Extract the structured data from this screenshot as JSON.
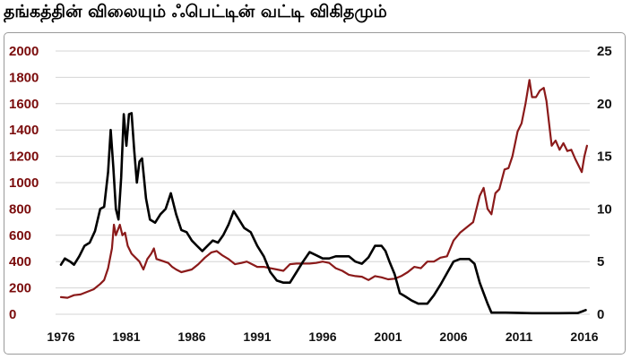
{
  "title": "தங்கத்தின் விலையும் ஃபெட்டின்  வட்டி விகிதமும்",
  "chart_data": {
    "type": "line",
    "title": "தங்கத்தின் விலையும் ஃபெட்டின்  வட்டி விகிதமும்",
    "xlim": [
      1976,
      2016
    ],
    "x_ticks": [
      "1976",
      "1981",
      "1986",
      "1991",
      "1996",
      "2001",
      "2006",
      "2011",
      "2016"
    ],
    "y_left": {
      "ylim": [
        0,
        2000
      ],
      "ticks": [
        "0",
        "200",
        "400",
        "600",
        "800",
        "1000",
        "1200",
        "1400",
        "1600",
        "1800",
        "2000"
      ]
    },
    "y_right": {
      "ylim": [
        0,
        25
      ],
      "ticks": [
        "0",
        "5",
        "10",
        "15",
        "20",
        "25"
      ]
    },
    "grid": true,
    "legend": "none",
    "colors": {
      "gold": "#8b1a1a",
      "rate": "#000000",
      "left_axis": "#7a0b0b",
      "right_axis": "#111111",
      "grid": "#d4d4d4"
    },
    "series": [
      {
        "axis": "left",
        "color": "#8b1a1a",
        "points": [
          [
            1976.0,
            130
          ],
          [
            1976.5,
            125
          ],
          [
            1977.0,
            145
          ],
          [
            1977.5,
            150
          ],
          [
            1978.0,
            170
          ],
          [
            1978.5,
            190
          ],
          [
            1979.0,
            230
          ],
          [
            1979.3,
            260
          ],
          [
            1979.6,
            350
          ],
          [
            1979.9,
            500
          ],
          [
            1980.05,
            680
          ],
          [
            1980.2,
            600
          ],
          [
            1980.35,
            640
          ],
          [
            1980.5,
            680
          ],
          [
            1980.7,
            600
          ],
          [
            1980.9,
            620
          ],
          [
            1981.1,
            520
          ],
          [
            1981.4,
            460
          ],
          [
            1981.7,
            430
          ],
          [
            1982.0,
            400
          ],
          [
            1982.3,
            340
          ],
          [
            1982.6,
            420
          ],
          [
            1982.9,
            460
          ],
          [
            1983.1,
            500
          ],
          [
            1983.3,
            420
          ],
          [
            1983.6,
            410
          ],
          [
            1983.9,
            400
          ],
          [
            1984.2,
            390
          ],
          [
            1984.5,
            360
          ],
          [
            1984.8,
            340
          ],
          [
            1985.2,
            320
          ],
          [
            1985.6,
            330
          ],
          [
            1986.0,
            340
          ],
          [
            1986.5,
            380
          ],
          [
            1987.0,
            430
          ],
          [
            1987.5,
            470
          ],
          [
            1987.9,
            480
          ],
          [
            1988.3,
            450
          ],
          [
            1988.8,
            420
          ],
          [
            1989.3,
            380
          ],
          [
            1989.8,
            390
          ],
          [
            1990.2,
            400
          ],
          [
            1990.6,
            380
          ],
          [
            1991.0,
            360
          ],
          [
            1991.5,
            360
          ],
          [
            1992.0,
            350
          ],
          [
            1992.5,
            340
          ],
          [
            1993.0,
            330
          ],
          [
            1993.5,
            380
          ],
          [
            1994.0,
            385
          ],
          [
            1994.5,
            385
          ],
          [
            1995.0,
            385
          ],
          [
            1995.5,
            390
          ],
          [
            1996.0,
            400
          ],
          [
            1996.5,
            390
          ],
          [
            1997.0,
            350
          ],
          [
            1997.5,
            330
          ],
          [
            1998.0,
            300
          ],
          [
            1998.5,
            290
          ],
          [
            1999.0,
            285
          ],
          [
            1999.5,
            260
          ],
          [
            2000.0,
            290
          ],
          [
            2000.5,
            280
          ],
          [
            2001.0,
            265
          ],
          [
            2001.5,
            270
          ],
          [
            2002.0,
            290
          ],
          [
            2002.5,
            320
          ],
          [
            2003.0,
            360
          ],
          [
            2003.5,
            350
          ],
          [
            2004.0,
            400
          ],
          [
            2004.5,
            400
          ],
          [
            2005.0,
            430
          ],
          [
            2005.5,
            440
          ],
          [
            2006.0,
            560
          ],
          [
            2006.5,
            620
          ],
          [
            2007.0,
            660
          ],
          [
            2007.5,
            700
          ],
          [
            2008.0,
            900
          ],
          [
            2008.3,
            960
          ],
          [
            2008.6,
            800
          ],
          [
            2008.9,
            760
          ],
          [
            2009.2,
            920
          ],
          [
            2009.5,
            950
          ],
          [
            2009.9,
            1100
          ],
          [
            2010.2,
            1110
          ],
          [
            2010.5,
            1200
          ],
          [
            2010.9,
            1390
          ],
          [
            2011.2,
            1450
          ],
          [
            2011.5,
            1600
          ],
          [
            2011.8,
            1780
          ],
          [
            2012.0,
            1650
          ],
          [
            2012.3,
            1650
          ],
          [
            2012.6,
            1700
          ],
          [
            2012.9,
            1720
          ],
          [
            2013.1,
            1620
          ],
          [
            2013.3,
            1450
          ],
          [
            2013.5,
            1280
          ],
          [
            2013.8,
            1320
          ],
          [
            2014.1,
            1250
          ],
          [
            2014.4,
            1300
          ],
          [
            2014.7,
            1240
          ],
          [
            2015.0,
            1250
          ],
          [
            2015.3,
            1180
          ],
          [
            2015.6,
            1120
          ],
          [
            2015.8,
            1080
          ],
          [
            2016.0,
            1200
          ],
          [
            2016.2,
            1280
          ]
        ]
      },
      {
        "axis": "right",
        "color": "#000000",
        "points": [
          [
            1976.0,
            4.7
          ],
          [
            1976.3,
            5.3
          ],
          [
            1976.7,
            5.0
          ],
          [
            1977.0,
            4.7
          ],
          [
            1977.4,
            5.5
          ],
          [
            1977.8,
            6.5
          ],
          [
            1978.2,
            6.8
          ],
          [
            1978.6,
            7.9
          ],
          [
            1979.0,
            10.0
          ],
          [
            1979.3,
            10.2
          ],
          [
            1979.6,
            13.5
          ],
          [
            1979.8,
            17.5
          ],
          [
            1980.0,
            14.0
          ],
          [
            1980.2,
            10.0
          ],
          [
            1980.4,
            9.0
          ],
          [
            1980.6,
            13.0
          ],
          [
            1980.8,
            19.0
          ],
          [
            1981.0,
            16.0
          ],
          [
            1981.2,
            19.0
          ],
          [
            1981.4,
            19.1
          ],
          [
            1981.6,
            15.5
          ],
          [
            1981.8,
            12.5
          ],
          [
            1982.0,
            14.5
          ],
          [
            1982.2,
            14.8
          ],
          [
            1982.5,
            11.0
          ],
          [
            1982.8,
            9.0
          ],
          [
            1983.2,
            8.7
          ],
          [
            1983.6,
            9.5
          ],
          [
            1984.0,
            10.0
          ],
          [
            1984.4,
            11.5
          ],
          [
            1984.8,
            9.5
          ],
          [
            1985.2,
            8.0
          ],
          [
            1985.6,
            7.8
          ],
          [
            1986.0,
            7.0
          ],
          [
            1986.4,
            6.5
          ],
          [
            1986.8,
            6.0
          ],
          [
            1987.2,
            6.5
          ],
          [
            1987.6,
            7.0
          ],
          [
            1988.0,
            6.8
          ],
          [
            1988.4,
            7.5
          ],
          [
            1988.8,
            8.5
          ],
          [
            1989.2,
            9.8
          ],
          [
            1989.6,
            9.0
          ],
          [
            1990.0,
            8.2
          ],
          [
            1990.5,
            7.8
          ],
          [
            1991.0,
            6.5
          ],
          [
            1991.5,
            5.5
          ],
          [
            1992.0,
            4.0
          ],
          [
            1992.5,
            3.2
          ],
          [
            1993.0,
            3.0
          ],
          [
            1993.5,
            3.0
          ],
          [
            1994.0,
            4.0
          ],
          [
            1994.5,
            5.0
          ],
          [
            1995.0,
            5.9
          ],
          [
            1995.5,
            5.6
          ],
          [
            1996.0,
            5.3
          ],
          [
            1996.5,
            5.3
          ],
          [
            1997.0,
            5.5
          ],
          [
            1997.5,
            5.5
          ],
          [
            1998.0,
            5.5
          ],
          [
            1998.5,
            5.0
          ],
          [
            1999.0,
            4.8
          ],
          [
            1999.5,
            5.4
          ],
          [
            2000.0,
            6.5
          ],
          [
            2000.5,
            6.5
          ],
          [
            2000.8,
            6.0
          ],
          [
            2001.1,
            5.0
          ],
          [
            2001.5,
            3.8
          ],
          [
            2001.9,
            2.0
          ],
          [
            2002.3,
            1.7
          ],
          [
            2002.8,
            1.3
          ],
          [
            2003.3,
            1.0
          ],
          [
            2004.0,
            1.0
          ],
          [
            2004.5,
            1.8
          ],
          [
            2005.0,
            2.8
          ],
          [
            2005.5,
            3.9
          ],
          [
            2006.0,
            5.0
          ],
          [
            2006.5,
            5.25
          ],
          [
            2007.2,
            5.25
          ],
          [
            2007.6,
            4.8
          ],
          [
            2008.0,
            3.0
          ],
          [
            2008.3,
            2.0
          ],
          [
            2008.6,
            1.0
          ],
          [
            2008.9,
            0.15
          ],
          [
            2010.0,
            0.15
          ],
          [
            2012.0,
            0.1
          ],
          [
            2014.0,
            0.1
          ],
          [
            2015.5,
            0.12
          ],
          [
            2015.9,
            0.3
          ],
          [
            2016.1,
            0.4
          ]
        ]
      }
    ]
  }
}
